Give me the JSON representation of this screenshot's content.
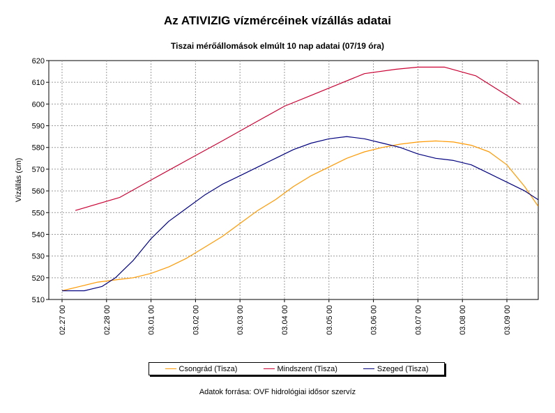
{
  "chart_data": {
    "type": "line",
    "title": "Az ATIVIZIG vízmércéinek vízállás adatai",
    "subtitle": "Tiszai mérőállomások elmúlt 10 nap adatai (07/19 óra)",
    "ylabel": "Vízállás (cm)",
    "xlabel": "",
    "ylim": [
      510,
      620
    ],
    "yticks": [
      510,
      520,
      530,
      540,
      550,
      560,
      570,
      580,
      590,
      600,
      610,
      620
    ],
    "xlim": [
      0,
      10.5
    ],
    "xticks": [
      {
        "x": 0,
        "label": "02.27 00"
      },
      {
        "x": 1,
        "label": "02.28 00"
      },
      {
        "x": 2,
        "label": "03.01 00"
      },
      {
        "x": 3,
        "label": "03.02 00"
      },
      {
        "x": 4,
        "label": "03.03 00"
      },
      {
        "x": 5,
        "label": "03.04 00"
      },
      {
        "x": 6,
        "label": "03.05 00"
      },
      {
        "x": 7,
        "label": "03.06 00"
      },
      {
        "x": 8,
        "label": "03.07 00"
      },
      {
        "x": 9,
        "label": "03.08 00"
      },
      {
        "x": 10,
        "label": "03.09 00"
      }
    ],
    "grid": true,
    "legend_position": "bottom",
    "series": [
      {
        "name": "Csongrád (Tisza)",
        "color": "#ff9900",
        "points": [
          [
            0.0,
            514
          ],
          [
            0.4,
            516
          ],
          [
            0.8,
            518
          ],
          [
            1.2,
            519
          ],
          [
            1.6,
            520
          ],
          [
            2.0,
            522
          ],
          [
            2.4,
            525
          ],
          [
            2.8,
            529
          ],
          [
            3.2,
            534
          ],
          [
            3.6,
            539
          ],
          [
            4.0,
            545
          ],
          [
            4.4,
            551
          ],
          [
            4.8,
            556
          ],
          [
            5.2,
            562
          ],
          [
            5.6,
            567
          ],
          [
            6.0,
            571
          ],
          [
            6.4,
            575
          ],
          [
            6.8,
            578
          ],
          [
            7.2,
            580
          ],
          [
            7.6,
            581.5
          ],
          [
            8.0,
            582.5
          ],
          [
            8.4,
            583
          ],
          [
            8.8,
            582.5
          ],
          [
            9.2,
            581
          ],
          [
            9.6,
            578
          ],
          [
            10.0,
            572
          ],
          [
            10.4,
            562
          ],
          [
            10.7,
            553
          ]
        ]
      },
      {
        "name": "Mindszent (Tisza)",
        "color": "#cc0033",
        "points": [
          [
            0.3,
            551
          ],
          [
            1.3,
            557
          ],
          [
            2.0,
            565
          ],
          [
            2.8,
            574
          ],
          [
            3.6,
            583
          ],
          [
            4.3,
            591
          ],
          [
            5.0,
            599
          ],
          [
            5.6,
            604
          ],
          [
            6.2,
            609
          ],
          [
            6.8,
            614
          ],
          [
            7.5,
            616
          ],
          [
            8.0,
            617
          ],
          [
            8.6,
            617
          ],
          [
            9.3,
            613
          ],
          [
            10.0,
            604
          ],
          [
            10.3,
            600
          ]
        ]
      },
      {
        "name": "Szeged (Tisza)",
        "color": "#000080",
        "points": [
          [
            0.0,
            514
          ],
          [
            0.5,
            514
          ],
          [
            0.9,
            516
          ],
          [
            1.2,
            520
          ],
          [
            1.6,
            528
          ],
          [
            2.0,
            538
          ],
          [
            2.4,
            546
          ],
          [
            2.8,
            552
          ],
          [
            3.2,
            558
          ],
          [
            3.6,
            563
          ],
          [
            4.0,
            567
          ],
          [
            4.4,
            571
          ],
          [
            4.8,
            575
          ],
          [
            5.2,
            579
          ],
          [
            5.6,
            582
          ],
          [
            6.0,
            584
          ],
          [
            6.4,
            585
          ],
          [
            6.8,
            584
          ],
          [
            7.2,
            582
          ],
          [
            7.6,
            580
          ],
          [
            8.0,
            577
          ],
          [
            8.4,
            575
          ],
          [
            8.8,
            574
          ],
          [
            9.2,
            572
          ],
          [
            9.6,
            568
          ],
          [
            10.0,
            564
          ],
          [
            10.4,
            560
          ],
          [
            10.7,
            556
          ]
        ]
      }
    ],
    "source_note": "Adatok forrása: OVF hidrológiai idősor szervíz"
  }
}
